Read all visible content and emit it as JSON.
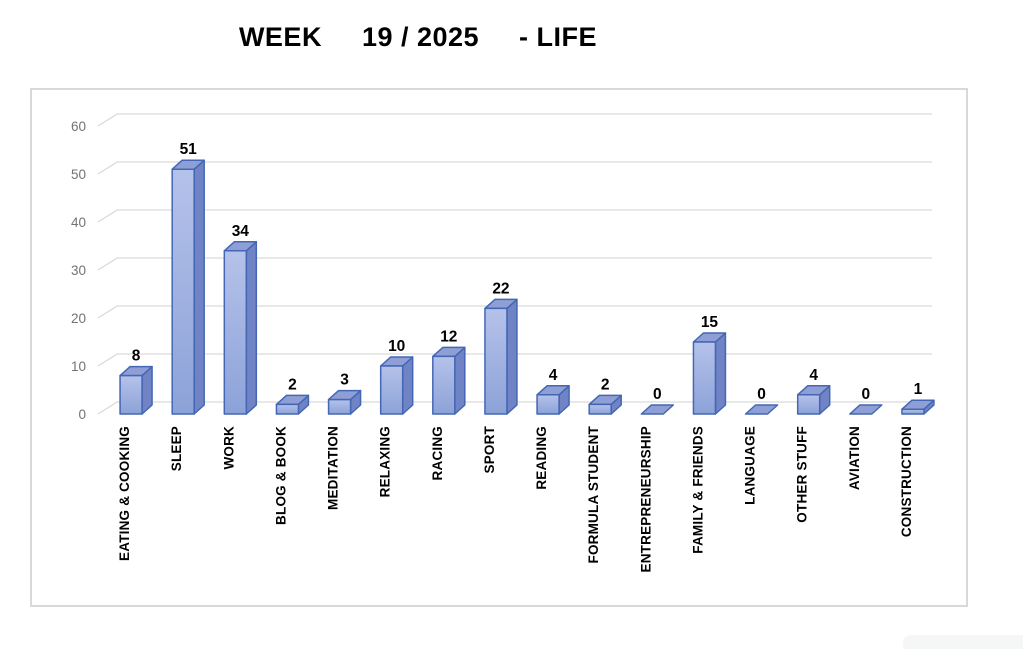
{
  "title": "WEEK     19 / 2025     - LIFE",
  "chart_data": {
    "type": "bar",
    "style": "3d-column",
    "title": "WEEK     19 / 2025     - LIFE",
    "xlabel": "",
    "ylabel": "",
    "categories": [
      "EATING & COOKING",
      "SLEEP",
      "WORK",
      "BLOG & BOOK",
      "MEDITATION",
      "RELAXING",
      "RACING",
      "SPORT",
      "READING",
      "FORMULA STUDENT",
      "ENTREPRENEURSHIP",
      "FAMILY & FRIENDS",
      "LANGUAGE",
      "OTHER STUFF",
      "AVIATION",
      "CONSTRUCTION"
    ],
    "values": [
      8,
      51,
      34,
      2,
      3,
      10,
      12,
      22,
      4,
      2,
      0,
      15,
      0,
      4,
      0,
      1
    ],
    "data_labels_shown": true,
    "ylim": [
      0,
      60
    ],
    "yticks": [
      0,
      10,
      20,
      30,
      40,
      50,
      60
    ],
    "grid": true,
    "legend": false,
    "colors": {
      "bar_front_top": "#b5c2ea",
      "bar_front_bottom": "#8ca2d8",
      "bar_side": "#7083c5",
      "bar_top": "#8f9fd6",
      "bar_outline": "#4367b4",
      "gridline": "#d9d9d9",
      "tick_label": "#737373",
      "data_label": "#000000",
      "category_label": "#000000",
      "chart_border": "#d9d9d9",
      "background": "#ffffff"
    }
  }
}
